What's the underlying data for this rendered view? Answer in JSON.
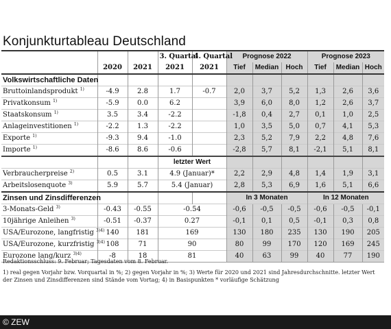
{
  "title": "Konjunkturtableau Deutschland",
  "header": {
    "q3": "3. Quartal",
    "q4": "4. Quartal",
    "prognose_2022": "Prognose 2022",
    "prognose_2023": "Prognose 2023",
    "years": [
      "2020",
      "2021",
      "2021",
      "2021"
    ],
    "sub": [
      "Tief",
      "Median",
      "Hoch",
      "Tief",
      "Median",
      "Hoch"
    ]
  },
  "sections": {
    "volkswirtschaft": "Volkswirtschaftliche Daten",
    "zinsen": "Zinsen und Zinsdifferenzen",
    "letzter_wert": "letzter Wert",
    "in3": "In 3 Monaten",
    "in12": "In 12 Monaten"
  },
  "rows_a": [
    {
      "label": "Bruttoinlandsprodukt",
      "sup": "1)",
      "v": [
        "-4.9",
        "2.8",
        "1.7",
        "-0.7"
      ],
      "p": [
        "2,0",
        "3,7",
        "5,2",
        "1,3",
        "2,6",
        "3,6"
      ]
    },
    {
      "label": "Privatkonsum",
      "sup": "1)",
      "v": [
        "-5.9",
        "0.0",
        "6.2",
        ""
      ],
      "p": [
        "3,9",
        "6,0",
        "8,0",
        "1,2",
        "2,6",
        "3,7"
      ]
    },
    {
      "label": "Staatskonsum",
      "sup": "1)",
      "v": [
        "3.5",
        "3.4",
        "-2.2",
        ""
      ],
      "p": [
        "-1,8",
        "0,4",
        "2,7",
        "0,1",
        "1,0",
        "2,5"
      ]
    },
    {
      "label": "Anlageinvestitionen",
      "sup": "1)",
      "v": [
        "-2.2",
        "1.3",
        "-2.2",
        ""
      ],
      "p": [
        "1,0",
        "3,5",
        "5,0",
        "0,7",
        "4,1",
        "5,3"
      ]
    },
    {
      "label": "Exporte",
      "sup": "1)",
      "v": [
        "-9.3",
        "9.4",
        "-1.0",
        ""
      ],
      "p": [
        "2,3",
        "5,2",
        "7,9",
        "2,2",
        "4,8",
        "7,6"
      ]
    },
    {
      "label": "Importe",
      "sup": "1)",
      "v": [
        "-8.6",
        "8.6",
        "-0.6",
        ""
      ],
      "p": [
        "-2,8",
        "5,7",
        "8,1",
        "-2,1",
        "5,1",
        "8,1"
      ]
    }
  ],
  "rows_b": [
    {
      "label": "Verbraucherpreise",
      "sup": "2)",
      "v": [
        "0.5",
        "3.1"
      ],
      "last": "4.9 (Januar)*",
      "p": [
        "2,2",
        "2,9",
        "4,8",
        "1,4",
        "1,9",
        "3,1"
      ]
    },
    {
      "label": "Arbeitslosenquote",
      "sup": "3)",
      "v": [
        "5.9",
        "5.7"
      ],
      "last": "5.4 (Januar)",
      "p": [
        "2,8",
        "5,3",
        "6,9",
        "1,6",
        "5,1",
        "6,6"
      ]
    }
  ],
  "rows_c": [
    {
      "label": "3-Monats-Geld",
      "sup": "3)",
      "v": [
        "-0.43",
        "-0.55"
      ],
      "last": "-0.54",
      "p": [
        "-0,6",
        "-0,5",
        "-0,5",
        "-0,6",
        "-0,5",
        "-0,1"
      ]
    },
    {
      "label": "10jährige Anleihen",
      "sup": "3)",
      "v": [
        "-0.51",
        "-0.37"
      ],
      "last": "0.27",
      "p": [
        "-0,1",
        "0,1",
        "0,5",
        "-0,1",
        "0,3",
        "0,8"
      ]
    },
    {
      "label": "USA/Eurozone, langfristig",
      "sup": "3)4)",
      "v": [
        "140",
        "181"
      ],
      "last": "169",
      "p": [
        "130",
        "180",
        "235",
        "130",
        "190",
        "205"
      ]
    },
    {
      "label": "USA/Eurozone, kurzfristig",
      "sup": "3)4)",
      "v": [
        "108",
        "71"
      ],
      "last": "90",
      "p": [
        "80",
        "99",
        "170",
        "120",
        "169",
        "245"
      ]
    },
    {
      "label": "Eurozone lang/kurz",
      "sup": "3)4)",
      "v": [
        "-8",
        "18"
      ],
      "last": "81",
      "p": [
        "40",
        "63",
        "99",
        "40",
        "77",
        "190"
      ]
    }
  ],
  "notes": {
    "redaktion": "Redaktionsschluss: 9. Februar; Tagesdaten vom 8. Februar.",
    "footnote": "1) real gegen Vorjahr bzw. Vorquartal in %; 2) gegen Vorjahr in %; 3) Werte für 2020 und 2021 sind Jahresdurchschnitte. letzter Wert der Zinsen und Zinsdifferenzen sind Stände vom Vortag; 4) in Basispunkten * vorläufige Schätzung"
  },
  "footer": "© ZEW"
}
